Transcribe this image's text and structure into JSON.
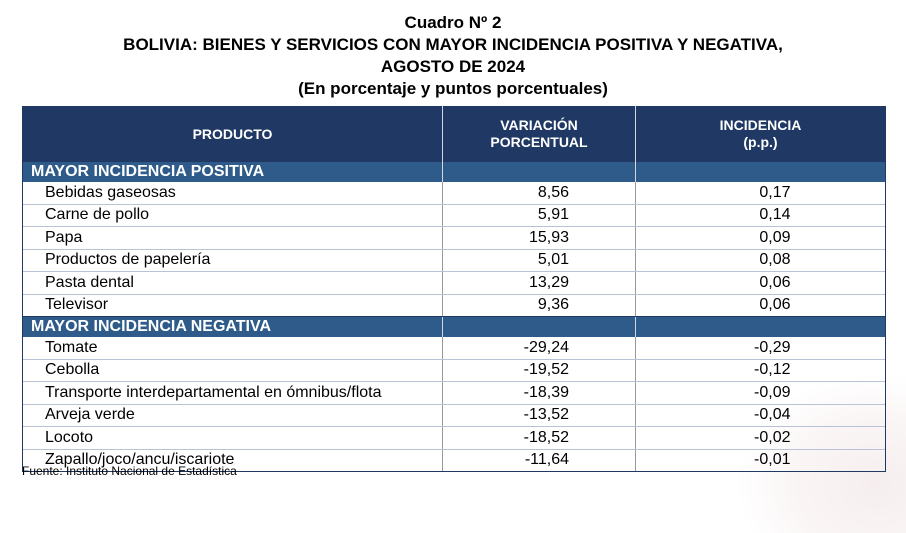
{
  "title": {
    "line1": "Cuadro Nº 2",
    "line2": "BOLIVIA: BIENES Y SERVICIOS CON MAYOR INCIDENCIA POSITIVA Y NEGATIVA,",
    "line3": "AGOSTO DE 2024",
    "line4": "(En porcentaje y puntos porcentuales)"
  },
  "headers": {
    "producto": "PRODUCTO",
    "variacion_1": "VARIACIÓN",
    "variacion_2": "PORCENTUAL",
    "incidencia_1": "INCIDENCIA",
    "incidencia_2": "(p.p.)"
  },
  "sections": {
    "positiva": "MAYOR INCIDENCIA POSITIVA",
    "negativa": "MAYOR INCIDENCIA NEGATIVA"
  },
  "positive_rows": [
    {
      "producto": "Bebidas gaseosas",
      "variacion": "8,56",
      "incidencia": "0,17"
    },
    {
      "producto": "Carne de pollo",
      "variacion": "5,91",
      "incidencia": "0,14"
    },
    {
      "producto": "Papa",
      "variacion": "15,93",
      "incidencia": "0,09"
    },
    {
      "producto": "Productos de papelería",
      "variacion": "5,01",
      "incidencia": "0,08"
    },
    {
      "producto": "Pasta dental",
      "variacion": "13,29",
      "incidencia": "0,06"
    },
    {
      "producto": "Televisor",
      "variacion": "9,36",
      "incidencia": "0,06"
    }
  ],
  "negative_rows": [
    {
      "producto": "Tomate",
      "variacion": "-29,24",
      "incidencia": "-0,29"
    },
    {
      "producto": "Cebolla",
      "variacion": "-19,52",
      "incidencia": "-0,12"
    },
    {
      "producto": "Transporte interdepartamental en ómnibus/flota",
      "variacion": "-18,39",
      "incidencia": "-0,09"
    },
    {
      "producto": "Arveja verde",
      "variacion": "-13,52",
      "incidencia": "-0,04"
    },
    {
      "producto": "Locoto",
      "variacion": "-18,52",
      "incidencia": "-0,02"
    },
    {
      "producto": "Zapallo/joco/ancu/iscariote",
      "variacion": "-11,64",
      "incidencia": "-0,01"
    }
  ],
  "source": "Fuente: Instituto Nacional de Estadística",
  "colors": {
    "header_bg": "#1f3864",
    "section_bg": "#2e5b8a"
  }
}
